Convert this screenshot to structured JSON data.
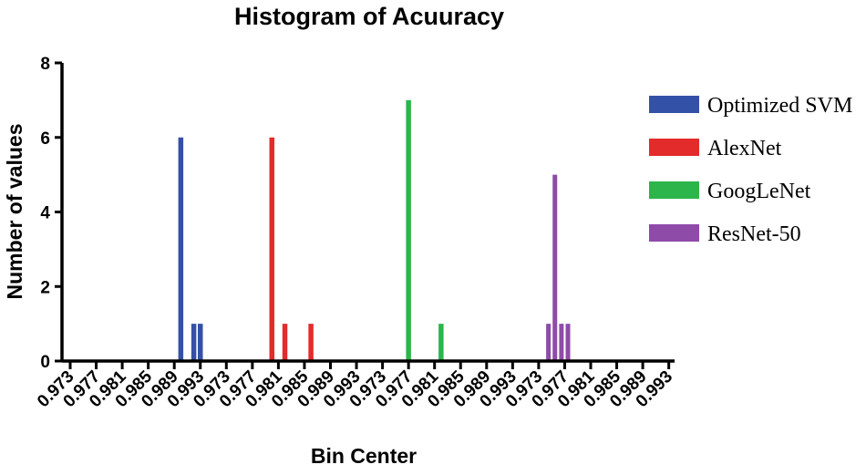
{
  "chart_data": {
    "type": "bar",
    "title": "Histogram of Acuuracy",
    "xlabel": "Bin Center",
    "ylabel": "Number of values",
    "ylim": [
      0,
      8
    ],
    "yticks": [
      "0",
      "2",
      "4",
      "6",
      "8"
    ],
    "grid": false,
    "legend_position": "right",
    "x_tick_labels": [
      "0.973",
      "0.977",
      "0.981",
      "0.985",
      "0.989",
      "0.993",
      "0.973",
      "0.977",
      "0.981",
      "0.985",
      "0.989",
      "0.993",
      "0.973",
      "0.977",
      "0.981",
      "0.985",
      "0.989",
      "0.993",
      "0.973",
      "0.977",
      "0.981",
      "0.985",
      "0.989",
      "0.993"
    ],
    "series": [
      {
        "name": "Optimized SVM",
        "color": "#3451a8",
        "x": [
          0.99,
          0.992,
          0.993
        ],
        "values": [
          6,
          1,
          1
        ]
      },
      {
        "name": "AlexNet",
        "color": "#e32b2b",
        "x": [
          0.98,
          0.982,
          0.986
        ],
        "values": [
          6,
          1,
          1
        ]
      },
      {
        "name": "GoogLeNet",
        "color": "#2bb54b",
        "x": [
          0.977,
          0.982
        ],
        "values": [
          7,
          1
        ]
      },
      {
        "name": "ResNet-50",
        "color": "#8e4ba8",
        "x": [
          0.9745,
          0.9755,
          0.9765,
          0.9775
        ],
        "values": [
          1,
          5,
          1,
          1
        ]
      }
    ]
  }
}
